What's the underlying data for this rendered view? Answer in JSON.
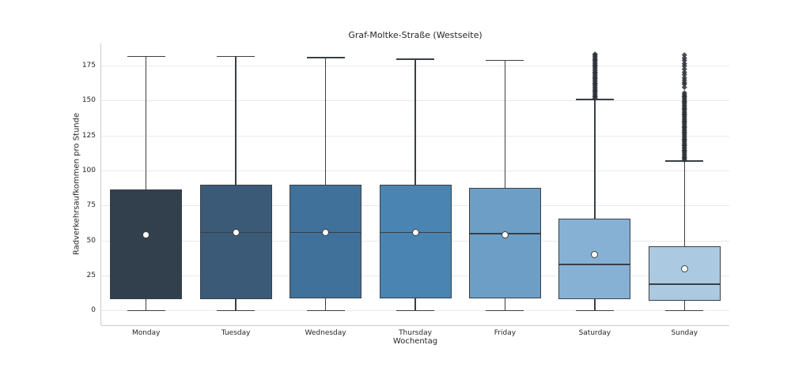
{
  "chart_data": {
    "type": "boxplot",
    "title": "Graf-Moltke-Straße (Westseite)",
    "xlabel": "Wochentag",
    "ylabel": "Radverkehrsaufkommen pro Stunde",
    "ylim": [
      -10.4,
      191.2
    ],
    "yticks": [
      0,
      25,
      50,
      75,
      100,
      125,
      150,
      175
    ],
    "grid": true,
    "legend": "none",
    "colors": {
      "edge": "#3a3f45",
      "grid": "#e9e9e9",
      "spine": "#cccccc",
      "text": "#262626",
      "mean_fill": "#ffffff",
      "outlier": "#2f3338",
      "background": "#ffffff"
    },
    "categories": [
      "Monday",
      "Tuesday",
      "Wednesday",
      "Thursday",
      "Friday",
      "Saturday",
      "Sunday"
    ],
    "series": [
      {
        "category": "Monday",
        "color": "#32404e",
        "whisker_low": 0,
        "q1": 8,
        "median": 52,
        "mean": 54,
        "q3": 87,
        "whisker_high": 182,
        "outliers": []
      },
      {
        "category": "Tuesday",
        "color": "#3a5a78",
        "whisker_low": 0,
        "q1": 8,
        "median": 56,
        "mean": 56,
        "q3": 90,
        "whisker_high": 182,
        "outliers": []
      },
      {
        "category": "Wednesday",
        "color": "#40719a",
        "whisker_low": 0,
        "q1": 9,
        "median": 56,
        "mean": 56,
        "q3": 90,
        "whisker_high": 181,
        "outliers": []
      },
      {
        "category": "Thursday",
        "color": "#4a84b2",
        "whisker_low": 0,
        "q1": 9,
        "median": 56,
        "mean": 56,
        "q3": 90,
        "whisker_high": 180,
        "outliers": []
      },
      {
        "category": "Friday",
        "color": "#6d9ec5",
        "whisker_low": 0,
        "q1": 9,
        "median": 55,
        "mean": 54,
        "q3": 88,
        "whisker_high": 179,
        "outliers": []
      },
      {
        "category": "Saturday",
        "color": "#87b1d4",
        "whisker_low": 0,
        "q1": 8,
        "median": 33,
        "mean": 40,
        "q3": 66,
        "whisker_high": 151,
        "outliers": [
          152,
          153,
          154,
          155,
          156,
          157,
          158,
          159,
          160,
          161,
          162,
          163,
          164,
          165,
          166,
          167,
          168,
          169,
          170,
          171,
          172,
          173,
          174,
          175,
          176,
          177,
          178,
          179,
          180,
          181,
          182,
          183,
          184
        ]
      },
      {
        "category": "Sunday",
        "color": "#abc9e0",
        "whisker_low": 0,
        "q1": 7,
        "median": 19,
        "mean": 30,
        "q3": 46,
        "whisker_high": 107,
        "outliers": [
          108,
          109,
          110,
          111,
          112,
          113,
          114,
          115,
          116,
          117,
          118,
          119,
          120,
          121,
          122,
          123,
          124,
          125,
          126,
          127,
          128,
          129,
          130,
          131,
          132,
          133,
          134,
          135,
          136,
          137,
          138,
          139,
          140,
          141,
          142,
          143,
          144,
          145,
          146,
          147,
          148,
          149,
          150,
          151,
          152,
          153,
          154,
          155,
          156,
          160,
          162,
          163.5,
          165,
          167,
          169,
          171,
          173,
          175,
          177,
          179,
          181,
          183
        ]
      }
    ]
  }
}
